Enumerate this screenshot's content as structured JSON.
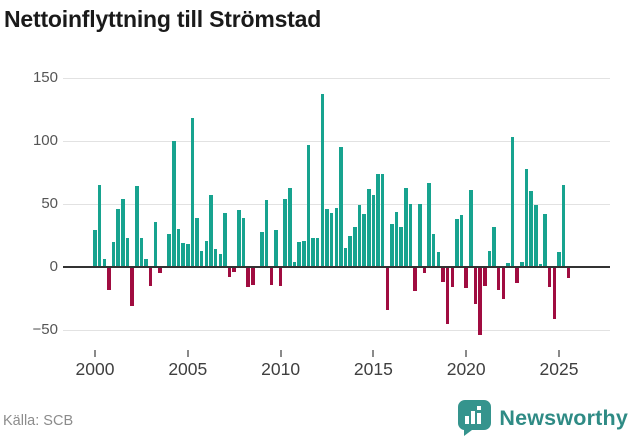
{
  "header": {
    "title": "Nettoinflyttning till Strömstad"
  },
  "footer": {
    "source": "Källa: SCB",
    "brand": "Newsworthy"
  },
  "colors": {
    "positive": "#17a38f",
    "negative": "#a00c40",
    "zero_line": "#333333",
    "gridline": "#e2e2e2",
    "y_label": "#555555",
    "x_label": "#3f3f3f",
    "source_text": "#8c8c8c",
    "brand_teal": "#35948d",
    "brand_text": "#2f8b85"
  },
  "chart_data": {
    "type": "bar",
    "title": "Nettoinflyttning till Strömstad",
    "x_unit": "quarter",
    "start_year": 2000,
    "start_quarter": 1,
    "values": [
      29,
      65,
      6,
      -18,
      20,
      46,
      54,
      23,
      -31,
      64,
      23,
      6,
      -15,
      36,
      -5,
      1,
      26,
      100,
      30,
      19,
      18,
      118,
      39,
      13,
      21,
      57,
      14,
      10,
      43,
      -8,
      -4,
      45,
      39,
      -16,
      -14,
      1,
      28,
      53,
      -14,
      29,
      -15,
      54,
      63,
      4,
      20,
      21,
      97,
      23,
      23,
      137,
      46,
      43,
      47,
      95,
      15,
      25,
      32,
      49,
      42,
      62,
      57,
      74,
      74,
      -34,
      34,
      44,
      32,
      63,
      50,
      -19,
      50,
      -5,
      67,
      26,
      12,
      -12,
      -45,
      -16,
      38,
      41,
      -17,
      61,
      -29,
      -54,
      -15,
      13,
      32,
      -18,
      -25,
      3,
      103,
      -13,
      4,
      78,
      60,
      49,
      2,
      42,
      -16,
      -41,
      12,
      65,
      -9
    ],
    "y_ticks": [
      150,
      100,
      50,
      0,
      -50
    ],
    "y_tick_labels": [
      "150",
      "100",
      "50",
      "0",
      "−50"
    ],
    "x_tick_labels": [
      "2000",
      "2005",
      "2010",
      "2015",
      "2020",
      "2025"
    ],
    "x_tick_indices": [
      0,
      20,
      40,
      60,
      80,
      100
    ],
    "ylim": [
      -58,
      150
    ],
    "grid": "horizontal",
    "legend": "none"
  }
}
